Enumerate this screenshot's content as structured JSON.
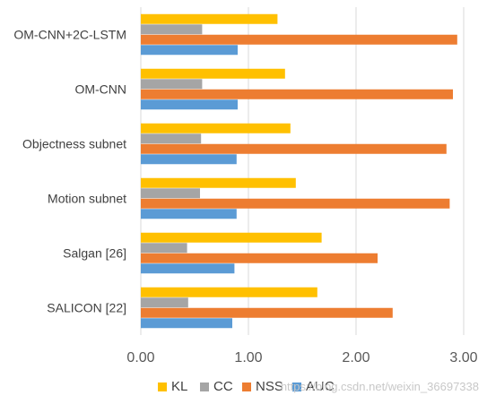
{
  "chart_data": {
    "type": "bar",
    "orientation": "horizontal",
    "categories": [
      "OM-CNN+2C-LSTM",
      "OM-CNN",
      "Objectness subnet",
      "Motion subnet",
      "Salgan [26]",
      "SALICON [22]"
    ],
    "series": [
      {
        "name": "KL",
        "color": "#FFC000",
        "values": [
          1.27,
          1.34,
          1.39,
          1.44,
          1.68,
          1.64
        ]
      },
      {
        "name": "CC",
        "color": "#A5A5A5",
        "values": [
          0.57,
          0.57,
          0.56,
          0.55,
          0.43,
          0.44
        ]
      },
      {
        "name": "NSS",
        "color": "#ED7D31",
        "values": [
          2.94,
          2.9,
          2.84,
          2.87,
          2.2,
          2.34
        ]
      },
      {
        "name": "AUC",
        "color": "#5B9BD5",
        "values": [
          0.9,
          0.9,
          0.89,
          0.89,
          0.87,
          0.85
        ]
      }
    ],
    "xlim": [
      0,
      3
    ],
    "x_ticks": [
      "0.00",
      "1.00",
      "2.00",
      "3.00"
    ],
    "grid": true,
    "legend_position": "bottom",
    "legend_order": [
      "KL",
      "CC",
      "NSS",
      "AUC"
    ],
    "xlabel": "",
    "ylabel": "",
    "title": ""
  },
  "watermark": "https://blog.csdn.net/weixin_36697338",
  "colors": {
    "gridline": "#D9D9D9",
    "axis_text": "#595959"
  }
}
